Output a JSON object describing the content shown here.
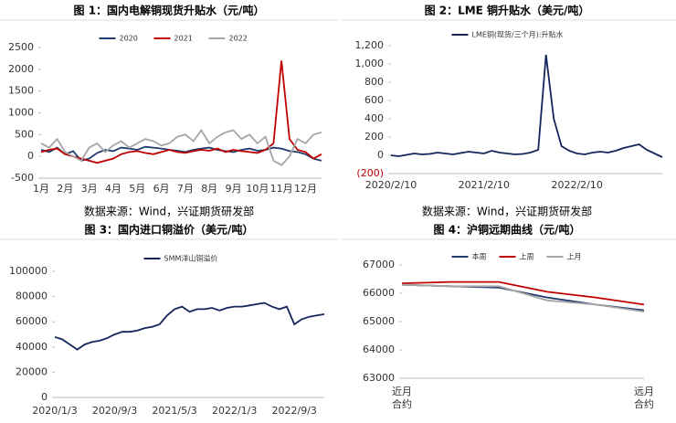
{
  "chart_data": [
    {
      "type": "line",
      "title": "图 1：国内电解铜现货升贴水（元/吨）",
      "categories": [
        "1月",
        null,
        null,
        "2月",
        null,
        null,
        "3月",
        null,
        null,
        "4月",
        null,
        null,
        "5月",
        null,
        null,
        "6月",
        null,
        null,
        "7月",
        null,
        null,
        "8月",
        null,
        null,
        "9月",
        null,
        null,
        "10月",
        null,
        null,
        "11月",
        null,
        null,
        "12月",
        null,
        null
      ],
      "series": [
        {
          "name": "2020",
          "color": "#1f3a6e",
          "values": [
            150,
            100,
            200,
            50,
            120,
            -100,
            -50,
            80,
            150,
            120,
            200,
            180,
            150,
            220,
            200,
            180,
            150,
            130,
            100,
            150,
            180,
            200,
            150,
            120,
            100,
            150,
            180,
            130,
            150,
            200,
            180,
            120,
            100,
            50,
            -50,
            -100
          ]
        },
        {
          "name": "2021",
          "color": "#c00000",
          "values": [
            100,
            150,
            180,
            50,
            0,
            -50,
            -100,
            -150,
            -100,
            -50,
            50,
            100,
            120,
            80,
            50,
            100,
            150,
            100,
            80,
            120,
            150,
            130,
            180,
            100,
            150,
            120,
            100,
            80,
            150,
            300,
            2200,
            400,
            150,
            100,
            -50,
            50
          ]
        },
        {
          "name": "2022",
          "color": "#a6a6a6",
          "values": [
            300,
            200,
            400,
            100,
            0,
            -100,
            200,
            300,
            100,
            250,
            350,
            200,
            300,
            400,
            350,
            250,
            300,
            450,
            500,
            350,
            600,
            300,
            450,
            550,
            600,
            400,
            500,
            300,
            450,
            -100,
            -200,
            0,
            400,
            300,
            500,
            550
          ]
        }
      ],
      "ylim": [
        -500,
        2500
      ],
      "yticks": [
        -500,
        0,
        500,
        1000,
        1500,
        2000,
        2500
      ],
      "legend": "top"
    },
    {
      "type": "line",
      "title": "图 2：LME 铜升贴水（美元/吨）",
      "categories": [
        "2020/2/10",
        null,
        null,
        null,
        null,
        null,
        null,
        null,
        null,
        null,
        null,
        null,
        "2021/2/10",
        null,
        null,
        null,
        null,
        null,
        null,
        null,
        null,
        null,
        null,
        null,
        "2022/2/10",
        null,
        null,
        null,
        null,
        null,
        null,
        null,
        null,
        null,
        null,
        null
      ],
      "series": [
        {
          "name": "LME铜(现货/三个月):升贴水",
          "color": "#13255a",
          "values": [
            0,
            -10,
            5,
            20,
            10,
            15,
            30,
            20,
            10,
            25,
            40,
            30,
            20,
            50,
            30,
            20,
            10,
            15,
            30,
            60,
            1100,
            400,
            100,
            50,
            20,
            10,
            30,
            40,
            30,
            50,
            80,
            100,
            120,
            60,
            20,
            -20
          ]
        }
      ],
      "ylim": [
        -200,
        1200
      ],
      "yticks": [
        {
          "value": -200,
          "label": "(200)"
        },
        0,
        200,
        400,
        600,
        800,
        {
          "value": 1000,
          "label": "1,000"
        },
        {
          "value": 1200,
          "label": "1,200"
        }
      ],
      "negative_tick_color": "#c00000",
      "legend": "top"
    },
    {
      "type": "line",
      "title": "图 3：国内进口铜溢价（美元/吨）",
      "categories": [
        "2020/1/3",
        null,
        null,
        null,
        null,
        null,
        null,
        null,
        "2020/9/3",
        null,
        null,
        null,
        null,
        null,
        null,
        null,
        "2021/5/3",
        null,
        null,
        null,
        null,
        null,
        null,
        null,
        "2022/1/3",
        null,
        null,
        null,
        null,
        null,
        null,
        null,
        "2022/9/3",
        null,
        null,
        null,
        null
      ],
      "series": [
        {
          "name": "SMM洋山铜溢价",
          "color": "#13255a",
          "values": [
            48000,
            46000,
            42000,
            38000,
            42000,
            44000,
            45000,
            47000,
            50000,
            52000,
            52000,
            53000,
            55000,
            56000,
            58000,
            65000,
            70000,
            72000,
            68000,
            70000,
            70000,
            71000,
            69000,
            71000,
            72000,
            72000,
            73000,
            74000,
            75000,
            72000,
            70000,
            72000,
            58000,
            62000,
            64000,
            65000,
            66000
          ]
        }
      ],
      "ylim": [
        0,
        100000
      ],
      "yticks": [
        0,
        20000,
        40000,
        60000,
        80000,
        100000
      ],
      "legend": "top"
    },
    {
      "type": "line",
      "title": "图 4：沪铜远期曲线（元/吨）",
      "categories": [
        "近月\n合约",
        null,
        null,
        null,
        null,
        "远月\n合约"
      ],
      "series": [
        {
          "name": "本周",
          "color": "#1f3a6e",
          "values": [
            66300,
            66250,
            66200,
            65850,
            65600,
            65400
          ]
        },
        {
          "name": "上周",
          "color": "#c00000",
          "values": [
            66350,
            66400,
            66400,
            66050,
            65850,
            65600
          ]
        },
        {
          "name": "上月",
          "color": "#a6a6a6",
          "values": [
            66300,
            66250,
            66250,
            65750,
            65600,
            65350
          ]
        }
      ],
      "ylim": [
        63000,
        67000
      ],
      "yticks": [
        63000,
        64000,
        65000,
        66000,
        67000
      ],
      "legend": "top"
    }
  ],
  "sources": [
    "数据来源：Wind，兴证期货研发部",
    "数据来源：Wind，兴证期货研发部"
  ]
}
